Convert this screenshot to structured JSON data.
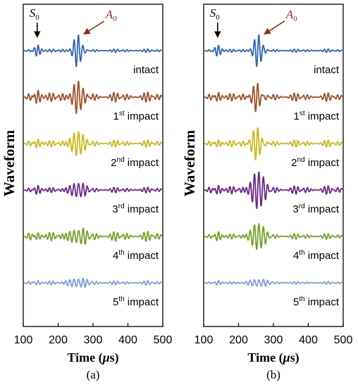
{
  "chart_data": [
    {
      "type": "line",
      "panel_label": "(a)",
      "ylabel": "Waveform",
      "xlabel": {
        "main": "Time (",
        "unit_greek": "μ",
        "unit_rest": "s)"
      },
      "xlim": [
        100,
        500
      ],
      "xticks": [
        100,
        200,
        300,
        400,
        500
      ],
      "annotations": [
        {
          "name": "S",
          "sub": "0",
          "time": 140,
          "color": "#000000"
        },
        {
          "name": "A",
          "sub": "0",
          "time": 255,
          "color": "#8b2b10"
        }
      ],
      "series": [
        {
          "label": "intact",
          "sup": "",
          "label_suffix": "",
          "color": "#2f66b8",
          "s0_amp": 0.35,
          "a0_amp": 1.0,
          "a0_center": 255,
          "a0_width": 14,
          "bg_amp": 0.12
        },
        {
          "label": "1",
          "sup": "st",
          "label_suffix": " impact",
          "color": "#a0522d",
          "s0_amp": 0.45,
          "a0_amp": 1.05,
          "a0_center": 255,
          "a0_width": 16,
          "bg_amp": 0.35
        },
        {
          "label": "2",
          "sup": "nd",
          "label_suffix": " impact",
          "color": "#c9b91c",
          "s0_amp": 0.3,
          "a0_amp": 0.75,
          "a0_center": 255,
          "a0_width": 22,
          "bg_amp": 0.25
        },
        {
          "label": "3",
          "sup": "rd",
          "label_suffix": " impact",
          "color": "#6a2a8a",
          "s0_amp": 0.3,
          "a0_amp": 0.42,
          "a0_center": 255,
          "a0_width": 30,
          "bg_amp": 0.2
        },
        {
          "label": "4",
          "sup": "th",
          "label_suffix": " impact",
          "color": "#77a22a",
          "s0_amp": 0.25,
          "a0_amp": 0.4,
          "a0_center": 255,
          "a0_width": 35,
          "bg_amp": 0.35
        },
        {
          "label": "5",
          "sup": "th",
          "label_suffix": " impact",
          "color": "#7fa0d8",
          "s0_amp": 0.15,
          "a0_amp": 0.25,
          "a0_center": 255,
          "a0_width": 40,
          "bg_amp": 0.15
        }
      ]
    },
    {
      "type": "line",
      "panel_label": "(b)",
      "ylabel": "Waveform",
      "xlabel": {
        "main": "Time (",
        "unit_greek": "μ",
        "unit_rest": "s)"
      },
      "xlim": [
        100,
        500
      ],
      "xticks": [
        100,
        200,
        300,
        400,
        500
      ],
      "annotations": [
        {
          "name": "S",
          "sub": "0",
          "time": 140,
          "color": "#000000"
        },
        {
          "name": "A",
          "sub": "0",
          "time": 255,
          "color": "#8b2b10"
        }
      ],
      "series": [
        {
          "label": "intact",
          "sup": "",
          "label_suffix": "",
          "color": "#2f66b8",
          "s0_amp": 0.35,
          "a0_amp": 1.0,
          "a0_center": 255,
          "a0_width": 14,
          "bg_amp": 0.12
        },
        {
          "label": "1",
          "sup": "st",
          "label_suffix": " impact",
          "color": "#a0522d",
          "s0_amp": 0.3,
          "a0_amp": 0.9,
          "a0_center": 252,
          "a0_width": 16,
          "bg_amp": 0.3
        },
        {
          "label": "2",
          "sup": "nd",
          "label_suffix": " impact",
          "color": "#c9b91c",
          "s0_amp": 0.25,
          "a0_amp": 1.0,
          "a0_center": 252,
          "a0_width": 18,
          "bg_amp": 0.25
        },
        {
          "label": "3",
          "sup": "rd",
          "label_suffix": " impact",
          "color": "#6a2a8a",
          "s0_amp": 0.3,
          "a0_amp": 1.15,
          "a0_center": 255,
          "a0_width": 22,
          "bg_amp": 0.3
        },
        {
          "label": "4",
          "sup": "th",
          "label_suffix": " impact",
          "color": "#77a22a",
          "s0_amp": 0.3,
          "a0_amp": 0.8,
          "a0_center": 255,
          "a0_width": 24,
          "bg_amp": 0.2
        },
        {
          "label": "5",
          "sup": "th",
          "label_suffix": " impact",
          "color": "#7fa0d8",
          "s0_amp": 0.15,
          "a0_amp": 0.2,
          "a0_center": 255,
          "a0_width": 40,
          "bg_amp": 0.1
        }
      ]
    }
  ]
}
